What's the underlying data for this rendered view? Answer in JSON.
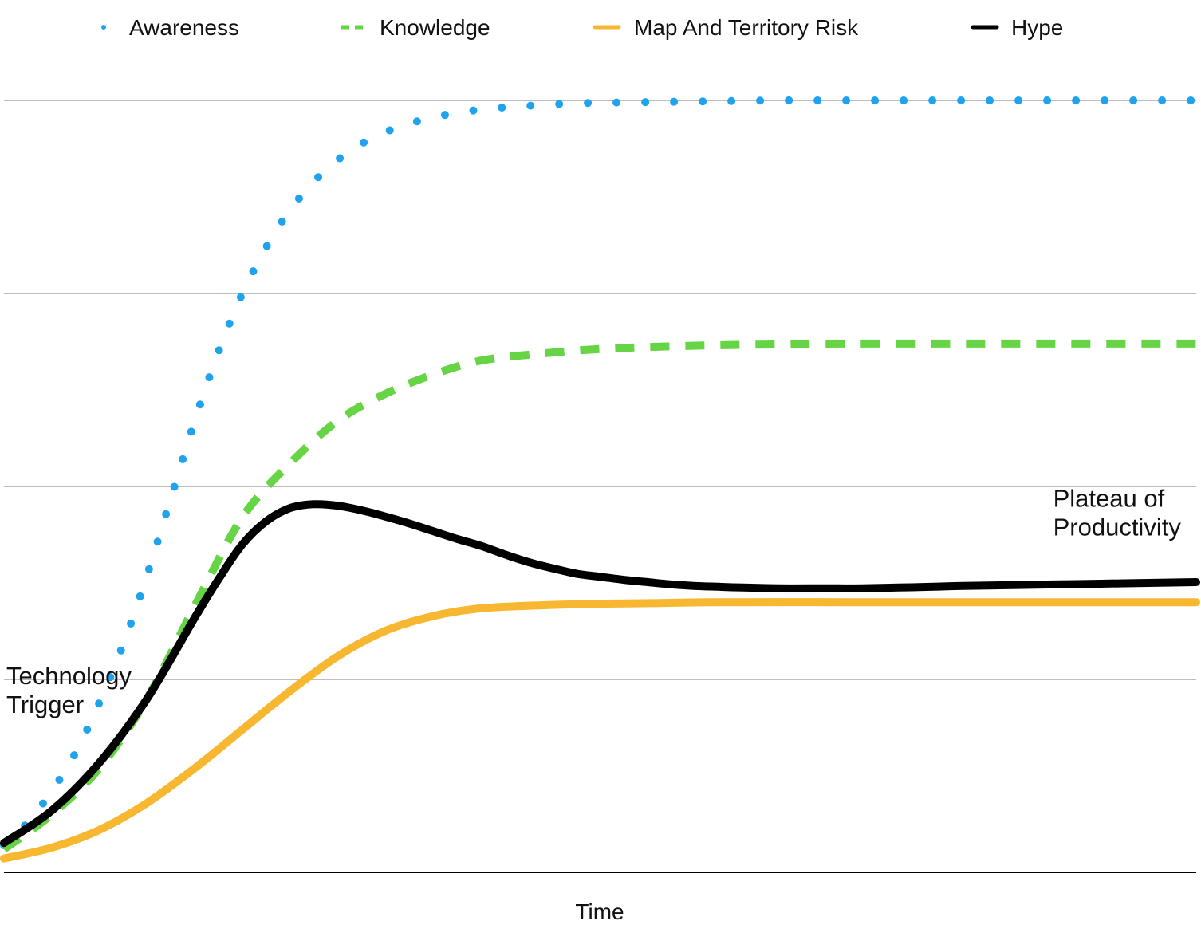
{
  "chart_data": {
    "type": "line",
    "title": "",
    "xlabel": "Time",
    "ylabel": "",
    "xlim": [
      0,
      100
    ],
    "ylim": [
      0,
      100
    ],
    "grid": true,
    "gridlines": [
      25,
      50,
      75,
      100
    ],
    "legend": "top",
    "annotations": [
      {
        "name": "technology-trigger",
        "lines": [
          "Technology",
          "Trigger"
        ],
        "x": 0,
        "y": 22.5
      },
      {
        "name": "plateau-of-productivity",
        "lines": [
          "Plateau of",
          "Productivity"
        ],
        "x": 88,
        "y": 45.5
      }
    ],
    "series": [
      {
        "name": "Awareness",
        "key": "awareness",
        "color": "#1fa3ef",
        "style": "dotted",
        "x": [
          0,
          2,
          4,
          6,
          8,
          10,
          12,
          14,
          16,
          18,
          20,
          22,
          24,
          26,
          28,
          30,
          32,
          34,
          36,
          38,
          40,
          42,
          44,
          46,
          48,
          50,
          55,
          60,
          65,
          70,
          75,
          80,
          85,
          90,
          95,
          100
        ],
        "y": [
          3.5,
          6.5,
          10.5,
          15.5,
          22,
          29.5,
          38.5,
          48.5,
          58.5,
          67.5,
          75,
          81,
          85.8,
          89.5,
          92.3,
          94.4,
          95.9,
          97,
          97.8,
          98.4,
          98.8,
          99.1,
          99.3,
          99.5,
          99.6,
          99.7,
          99.8,
          99.9,
          100,
          100,
          100,
          100,
          100,
          100,
          100,
          100
        ]
      },
      {
        "name": "Knowledge",
        "key": "knowledge",
        "color": "#66d444",
        "style": "dashed",
        "x": [
          0,
          4,
          8,
          12,
          16,
          20,
          24,
          28,
          32,
          36,
          40,
          45,
          50,
          55,
          60,
          65,
          70,
          80,
          90,
          100
        ],
        "y": [
          3,
          7.5,
          13.5,
          22.5,
          34.5,
          46,
          53,
          58.5,
          62,
          64.5,
          66.3,
          67.2,
          67.8,
          68.1,
          68.3,
          68.4,
          68.5,
          68.5,
          68.5,
          68.5
        ]
      },
      {
        "name": "Map And Territory Risk",
        "key": "map_and_territory_risk",
        "color": "#f7b731",
        "style": "solid",
        "x": [
          0,
          4,
          8,
          12,
          16,
          20,
          24,
          28,
          32,
          36,
          40,
          45,
          50,
          55,
          60,
          70,
          80,
          90,
          100
        ],
        "y": [
          1.8,
          3.2,
          5.5,
          9,
          13.5,
          18.5,
          23.5,
          28,
          31.3,
          33.2,
          34.2,
          34.6,
          34.8,
          34.9,
          35,
          35,
          35,
          35,
          35
        ]
      },
      {
        "name": "Hype",
        "key": "hype",
        "color": "#000000",
        "style": "solid",
        "x": [
          0,
          4,
          8,
          12,
          16,
          18,
          20,
          22,
          24,
          26,
          28,
          30,
          32,
          34,
          36,
          38,
          40,
          42,
          44,
          46,
          48,
          50,
          52,
          54,
          56,
          58,
          60,
          62,
          65,
          68,
          70,
          72,
          75,
          78,
          80,
          84,
          88,
          92,
          96,
          100
        ],
        "y": [
          3.8,
          8,
          14.2,
          22.5,
          33,
          38,
          42.5,
          45.5,
          47.2,
          47.7,
          47.5,
          46.9,
          46.1,
          45.2,
          44.2,
          43.2,
          42.3,
          41.2,
          40.2,
          39.4,
          38.7,
          38.3,
          37.9,
          37.6,
          37.3,
          37.1,
          37,
          36.9,
          36.8,
          36.8,
          36.8,
          36.8,
          36.9,
          37,
          37.1,
          37.2,
          37.3,
          37.4,
          37.5,
          37.6
        ]
      }
    ]
  }
}
